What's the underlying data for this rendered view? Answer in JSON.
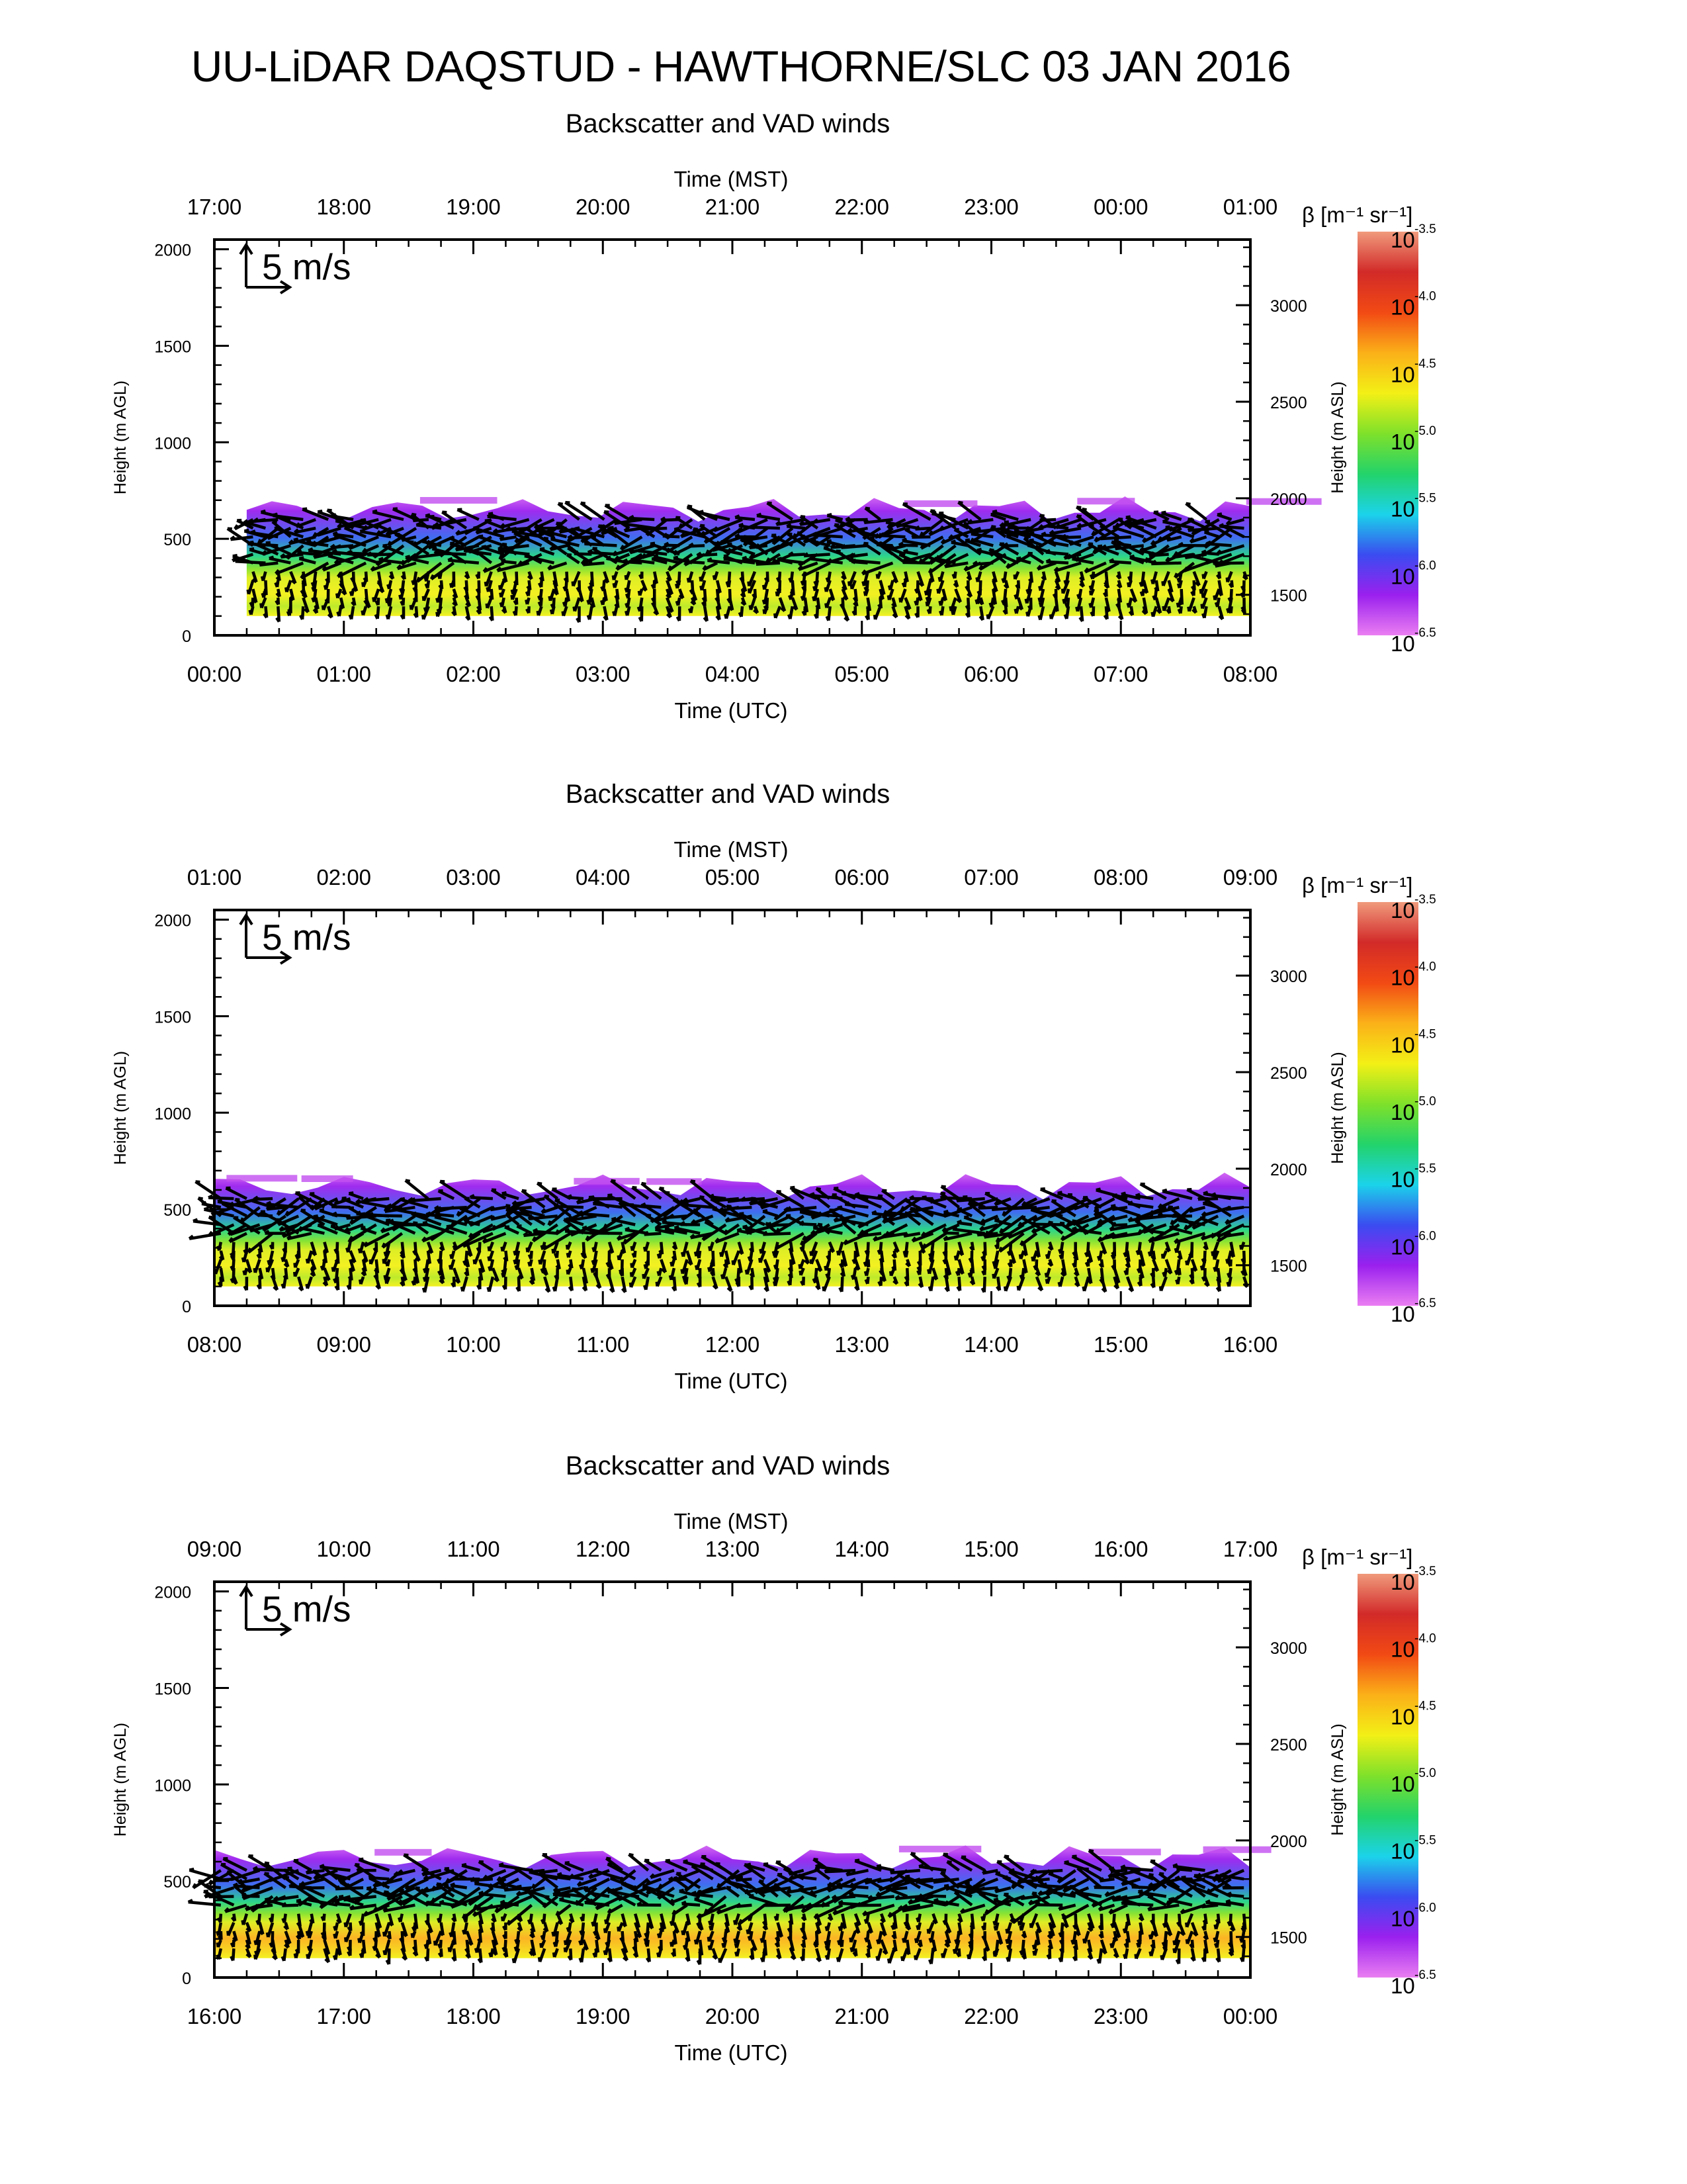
{
  "page": {
    "title": "UU-LiDAR DAQSTUD - HAWTHORNE/SLC 03 JAN 2016"
  },
  "panel_labels": {
    "title": "Backscatter and VAD winds",
    "top_axis_title": "Time (MST)",
    "bottom_axis_title": "Time (UTC)",
    "left_axis_title": "Height (m AGL)",
    "right_axis_title": "Height (m ASL)",
    "scale_arrow_label": "5 m/s",
    "colorbar_title": "β [m⁻¹ sr⁻¹]",
    "colorbar_base": "10"
  },
  "colors": {
    "axis": "#000000",
    "arrow": "#000000",
    "backscatter_colormap": [
      "#ea7ef2",
      "#9a20ee",
      "#3a4cf0",
      "#1bd3ea",
      "#23d36a",
      "#7fe12a",
      "#f3f016",
      "#fbb018",
      "#f24a14",
      "#d22a28",
      "#f09a7c"
    ]
  },
  "chart_data": [
    {
      "type": "heatmap",
      "title": "Backscatter and VAD winds",
      "xlabel": "Time (UTC)",
      "x2label": "Time (MST)",
      "ylabel": "Height (m AGL)",
      "y2label": "Height (m ASL)",
      "x_ticks": [
        "00:00",
        "01:00",
        "02:00",
        "03:00",
        "04:00",
        "05:00",
        "06:00",
        "07:00",
        "08:00"
      ],
      "x2_ticks": [
        "17:00",
        "18:00",
        "19:00",
        "20:00",
        "21:00",
        "22:00",
        "23:00",
        "00:00",
        "01:00"
      ],
      "xlim_hours": [
        0,
        8
      ],
      "y_ticks": [
        0,
        500,
        1000,
        1500,
        2000
      ],
      "ylim": [
        0,
        2050
      ],
      "y2_ticks": [
        1500,
        2000,
        2500,
        3000
      ],
      "colorbar": {
        "label": "β [m⁻¹ sr⁻¹]",
        "log10_range": [
          -6.5,
          -3.5
        ],
        "exponent_labels": [
          "-3.5",
          "-4.0",
          "-4.5",
          "-5.0",
          "-5.5",
          "-6.0",
          "-6.5"
        ]
      },
      "aerosol_layer_top_m": 650,
      "data_start_hour": 0.25,
      "max_log10_backscatter": -4.7,
      "vector_scale": "5 m/s"
    },
    {
      "type": "heatmap",
      "title": "Backscatter and VAD winds",
      "xlabel": "Time (UTC)",
      "x2label": "Time (MST)",
      "ylabel": "Height (m AGL)",
      "y2label": "Height (m ASL)",
      "x_ticks": [
        "08:00",
        "09:00",
        "10:00",
        "11:00",
        "12:00",
        "13:00",
        "14:00",
        "15:00",
        "16:00"
      ],
      "x2_ticks": [
        "01:00",
        "02:00",
        "03:00",
        "04:00",
        "05:00",
        "06:00",
        "07:00",
        "08:00",
        "09:00"
      ],
      "xlim_hours": [
        8,
        16
      ],
      "y_ticks": [
        0,
        500,
        1000,
        1500,
        2000
      ],
      "ylim": [
        0,
        2050
      ],
      "y2_ticks": [
        1500,
        2000,
        2500,
        3000
      ],
      "colorbar": {
        "label": "β [m⁻¹ sr⁻¹]",
        "log10_range": [
          -6.5,
          -3.5
        ],
        "exponent_labels": [
          "-3.5",
          "-4.0",
          "-4.5",
          "-5.0",
          "-5.5",
          "-6.0",
          "-6.5"
        ]
      },
      "aerosol_layer_top_m": 620,
      "data_start_hour": 8.0,
      "max_log10_backscatter": -4.7,
      "vector_scale": "5 m/s"
    },
    {
      "type": "heatmap",
      "title": "Backscatter and VAD winds",
      "xlabel": "Time (UTC)",
      "x2label": "Time (MST)",
      "ylabel": "Height (m AGL)",
      "y2label": "Height (m ASL)",
      "x_ticks": [
        "16:00",
        "17:00",
        "18:00",
        "19:00",
        "20:00",
        "21:00",
        "22:00",
        "23:00",
        "00:00"
      ],
      "x2_ticks": [
        "09:00",
        "10:00",
        "11:00",
        "12:00",
        "13:00",
        "14:00",
        "15:00",
        "16:00",
        "17:00"
      ],
      "xlim_hours": [
        16,
        24
      ],
      "y_ticks": [
        0,
        500,
        1000,
        1500,
        2000
      ],
      "ylim": [
        0,
        2050
      ],
      "y2_ticks": [
        1500,
        2000,
        2500,
        3000
      ],
      "colorbar": {
        "label": "β [m⁻¹ sr⁻¹]",
        "log10_range": [
          -6.5,
          -3.5
        ],
        "exponent_labels": [
          "-3.5",
          "-4.0",
          "-4.5",
          "-5.0",
          "-5.5",
          "-6.0",
          "-6.5"
        ]
      },
      "aerosol_layer_top_m": 620,
      "data_start_hour": 16.0,
      "max_log10_backscatter": -4.4,
      "vector_scale": "5 m/s"
    }
  ]
}
